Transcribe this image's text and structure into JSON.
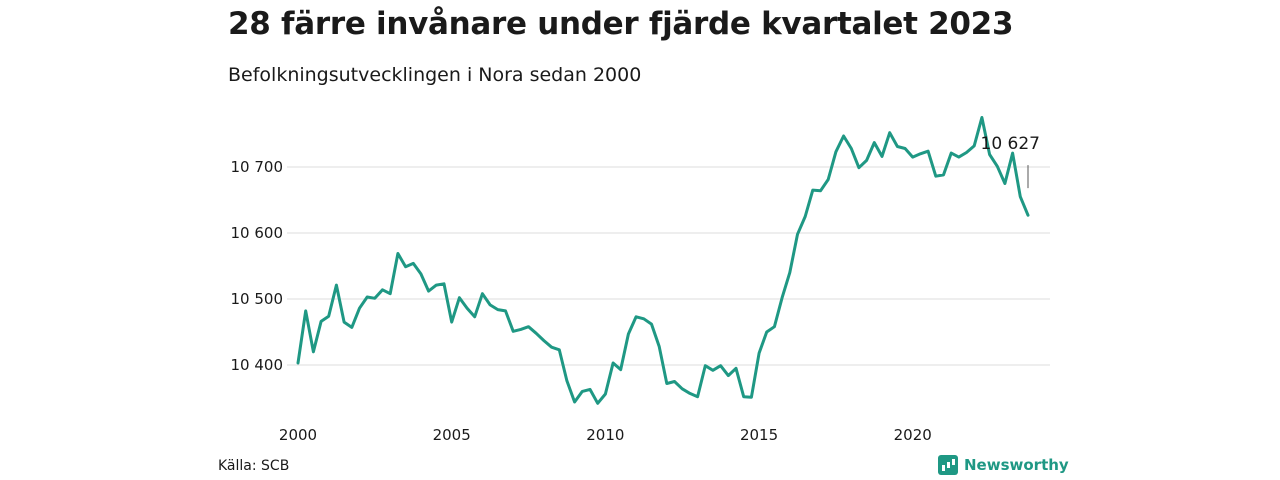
{
  "header": {
    "title": "28 färre invånare under fjärde kvartalet 2023",
    "subtitle": "Befolkningsutvecklingen i Nora sedan 2000"
  },
  "footer": {
    "source": "Källa: SCB",
    "brand": "Newsworthy"
  },
  "colors": {
    "line": "#1f9884",
    "grid": "#dddddd",
    "brand": "#1f9884"
  },
  "chart_data": {
    "type": "line",
    "title": "28 färre invånare under fjärde kvartalet 2023",
    "subtitle": "Befolkningsutvecklingen i Nora sedan 2000",
    "xlabel": "",
    "ylabel": "",
    "xlim": [
      2000,
      2024
    ],
    "ylim": [
      10335,
      10780
    ],
    "x_ticks": [
      2000,
      2005,
      2010,
      2015,
      2020
    ],
    "x_tick_labels": [
      "2000",
      "2005",
      "2010",
      "2015",
      "2020"
    ],
    "y_ticks": [
      10400,
      10500,
      10600,
      10700
    ],
    "y_tick_labels": [
      "10 400",
      "10 500",
      "10 600",
      "10 700"
    ],
    "grid": "horizontal",
    "legend": "none",
    "annotation": {
      "label": "10 627",
      "x": 2023.75,
      "y": 10627
    },
    "series": [
      {
        "x": [
          2000.0,
          2000.25,
          2000.5,
          2000.75,
          2001.0,
          2001.25,
          2001.5,
          2001.75,
          2002.0,
          2002.25,
          2002.5,
          2002.75,
          2003.0,
          2003.25,
          2003.5,
          2003.75,
          2004.0,
          2004.25,
          2004.5,
          2004.75,
          2005.0,
          2005.25,
          2005.5,
          2005.75,
          2006.0,
          2006.25,
          2006.5,
          2006.75,
          2007.0,
          2007.25,
          2007.5,
          2007.75,
          2008.0,
          2008.25,
          2008.5,
          2008.75,
          2009.0,
          2009.25,
          2009.5,
          2009.75,
          2010.0,
          2010.25,
          2010.5,
          2010.75,
          2011.0,
          2011.25,
          2011.5,
          2011.75,
          2012.0,
          2012.25,
          2012.5,
          2012.75,
          2013.0,
          2013.25,
          2013.5,
          2013.75,
          2014.0,
          2014.25,
          2014.5,
          2014.75,
          2015.0,
          2015.25,
          2015.5,
          2015.75,
          2016.0,
          2016.25,
          2016.5,
          2016.75,
          2017.0,
          2017.25,
          2017.5,
          2017.75,
          2018.0,
          2018.25,
          2018.5,
          2018.75,
          2019.0,
          2019.25,
          2019.5,
          2019.75,
          2020.0,
          2020.25,
          2020.5,
          2020.75,
          2021.0,
          2021.25,
          2021.5,
          2021.75,
          2022.0,
          2022.25,
          2022.5,
          2022.75,
          2023.0,
          2023.25,
          2023.5,
          2023.75
        ],
        "values": [
          10403,
          10482,
          10420,
          10466,
          10474,
          10521,
          10465,
          10457,
          10486,
          10503,
          10501,
          10514,
          10508,
          10569,
          10549,
          10554,
          10538,
          10512,
          10521,
          10523,
          10465,
          10502,
          10486,
          10473,
          10508,
          10491,
          10484,
          10482,
          10451,
          10454,
          10458,
          10448,
          10437,
          10427,
          10423,
          10376,
          10344,
          10360,
          10363,
          10342,
          10356,
          10403,
          10393,
          10447,
          10473,
          10470,
          10462,
          10428,
          10372,
          10375,
          10364,
          10357,
          10352,
          10399,
          10392,
          10399,
          10384,
          10395,
          10352,
          10351,
          10418,
          10450,
          10458,
          10502,
          10540,
          10598,
          10625,
          10665,
          10664,
          10681,
          10723,
          10747,
          10728,
          10699,
          10710,
          10737,
          10716,
          10752,
          10731,
          10728,
          10715,
          10720,
          10724,
          10686,
          10688,
          10721,
          10715,
          10722,
          10732,
          10775,
          10719,
          10701,
          10675,
          10721,
          10655,
          10627
        ]
      }
    ]
  }
}
